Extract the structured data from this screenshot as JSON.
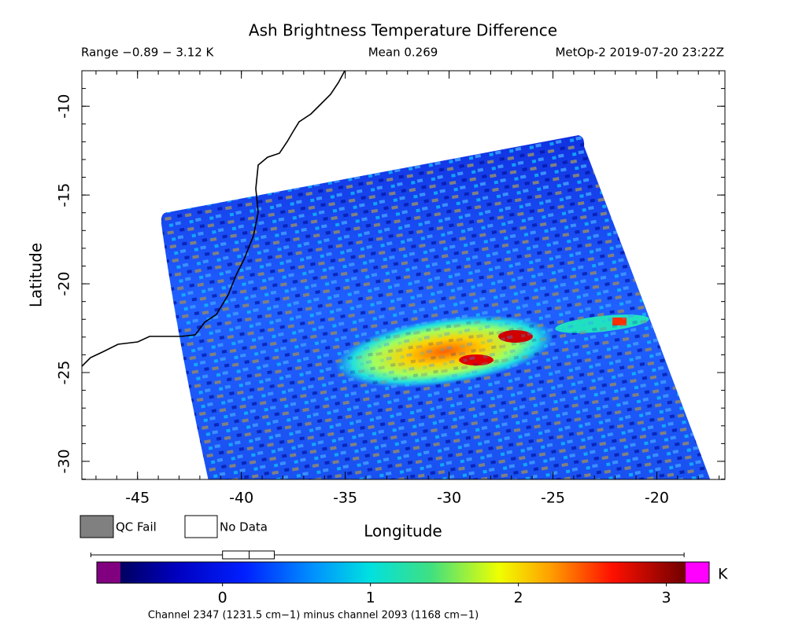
{
  "chart_data": {
    "type": "heatmap",
    "title": "Ash Brightness Temperature Difference",
    "subtitle_left": "Range −0.89 − 3.12 K",
    "subtitle_center": "Mean 0.269",
    "subtitle_right": "MetOp-2 2019-07-20 23:22Z",
    "xlabel": "Longitude",
    "ylabel": "Latitude",
    "xlim": [
      -47.68,
      -16.72
    ],
    "ylim": [
      -31.02,
      -8.0
    ],
    "xticks": [
      -45,
      -40,
      -35,
      -30,
      -25,
      -20
    ],
    "yticks": [
      -10,
      -15,
      -20,
      -25,
      -30
    ],
    "legend": [
      {
        "label": "QC Fail",
        "color": "#808080"
      },
      {
        "label": "No Data",
        "color": "#ffffff"
      }
    ],
    "colorbar": {
      "lim": [
        -0.69,
        3.13
      ],
      "ticks": [
        0,
        1,
        2,
        3
      ],
      "unit": "K",
      "caption": "Channel 2347 (1231.5 cm−1) minus channel 2093 (1168 cm−1)",
      "box": {
        "min": -0.89,
        "q1": 0,
        "median": 0.18,
        "q3": 0.35,
        "max": 3.12
      }
    }
  }
}
